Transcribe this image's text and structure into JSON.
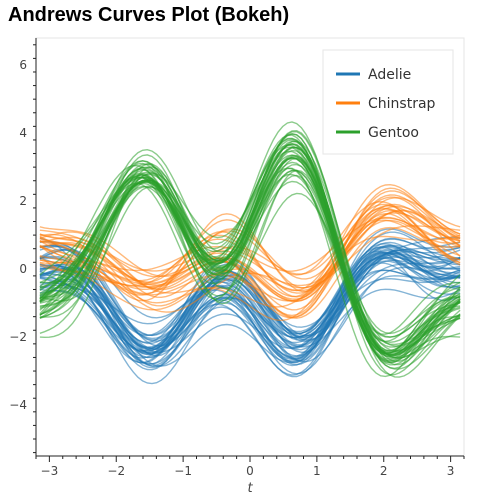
{
  "chart_data": {
    "type": "line",
    "title": "Andrews Curves Plot (Bokeh)",
    "xlabel": "t",
    "ylabel": "",
    "xlim": [
      -3.2,
      3.2
    ],
    "ylim": [
      -5.5,
      6.8
    ],
    "x_ticks": [
      -3,
      -2,
      -1,
      0,
      1,
      2,
      3
    ],
    "y_ticks": [
      -4,
      -2,
      0,
      2,
      4,
      6
    ],
    "grid": false,
    "legend_position": "top-right",
    "series": [
      {
        "name": "Adelie",
        "color": "#1f77b4",
        "count": 40,
        "approx_center_curve": {
          "x": [
            -3.14,
            -2,
            -1,
            0,
            0.7,
            1.5,
            2.3,
            3.14
          ],
          "y": [
            0.1,
            -1.5,
            -1.6,
            -1.0,
            -2.4,
            -0.5,
            0.4,
            -0.1
          ]
        }
      },
      {
        "name": "Chinstrap",
        "color": "#ff7f0e",
        "count": 25,
        "approx_center_curve": {
          "x": [
            -3.14,
            -2,
            -1,
            0,
            0.7,
            1.5,
            2.3,
            3.14
          ],
          "y": [
            0.6,
            -0.1,
            -0.2,
            0.1,
            -0.7,
            0.9,
            1.6,
            0.9
          ]
        }
      },
      {
        "name": "Gentoo",
        "color": "#2ca02c",
        "count": 40,
        "approx_center_curve": {
          "x": [
            -3.14,
            -2,
            -1,
            0,
            0.7,
            1.5,
            2.3,
            3.14
          ],
          "y": [
            -1.0,
            2.0,
            1.3,
            1.2,
            3.2,
            -0.6,
            -2.3,
            -0.9
          ]
        }
      }
    ]
  }
}
